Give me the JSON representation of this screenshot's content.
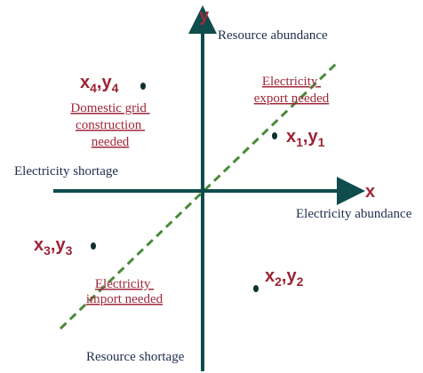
{
  "axes": {
    "x": "x",
    "y": "y"
  },
  "labels": {
    "top": "Resource abundance",
    "left": "Electricity shortage",
    "right": "Electricity abundance",
    "bottom": "Resource shortage"
  },
  "quadrants": [
    {
      "lines": [
        "Electricity",
        "export needed"
      ]
    },
    {
      "lines": [
        "Domestic grid",
        "construction",
        "needed"
      ]
    },
    {
      "lines": [
        "Electricity",
        "import needed"
      ]
    }
  ],
  "points": [
    {
      "label": [
        "x",
        "1",
        ",",
        "y",
        "1"
      ]
    },
    {
      "label": [
        "x",
        "2",
        ",",
        "y",
        "2"
      ]
    },
    {
      "label": [
        "x",
        "3",
        ",",
        "y",
        "3"
      ]
    },
    {
      "label": [
        "x",
        "4",
        ",",
        "y",
        "4"
      ]
    }
  ]
}
